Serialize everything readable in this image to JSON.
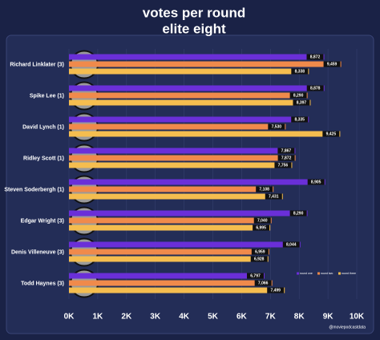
{
  "chart_data": {
    "type": "hbar",
    "title": "votes per round",
    "subtitle": "elite eight",
    "categories": [
      "Richard Linklater (3)",
      "Spike Lee (1)",
      "David Lynch (1)",
      "Ridley Scott (1)",
      "Steven Soderbergh (1)",
      "Edgar Wright (3)",
      "Denis Villeneuve (3)",
      "Todd Haynes (3)"
    ],
    "series": [
      {
        "name": "round one",
        "color": "#6a2fd8",
        "values": [
          8872,
          8878,
          8335,
          7867,
          8905,
          8290,
          8044,
          6797
        ],
        "value_labels": [
          "8,872",
          "8,878",
          "8,335",
          "7,867",
          "8,905",
          "8,290",
          "8,044",
          "6,797"
        ]
      },
      {
        "name": "round two",
        "color": "#f08a4b",
        "values": [
          9459,
          8290,
          7530,
          7872,
          7108,
          7040,
          6959,
          7066
        ],
        "value_labels": [
          "9,459",
          "8,290",
          "7,530",
          "7,872",
          "7,108",
          "7,040",
          "6,959",
          "7,066"
        ]
      },
      {
        "name": "round three",
        "color": "#f5bd4f",
        "values": [
          8338,
          8397,
          9425,
          7756,
          7431,
          6995,
          6928,
          7499
        ],
        "value_labels": [
          "8,338",
          "8,397",
          "9,425",
          "7,756",
          "7,431",
          "6,995",
          "6,928",
          "7,499"
        ]
      }
    ],
    "xlim": [
      0,
      10000
    ],
    "xticks": [
      {
        "value": 0,
        "label": "0K"
      },
      {
        "value": 1000,
        "label": "1K"
      },
      {
        "value": 2000,
        "label": "2K"
      },
      {
        "value": 3000,
        "label": "3K"
      },
      {
        "value": 4000,
        "label": "4K"
      },
      {
        "value": 5000,
        "label": "5K"
      },
      {
        "value": 6000,
        "label": "6K"
      },
      {
        "value": 7000,
        "label": "7K"
      },
      {
        "value": 8000,
        "label": "8K"
      },
      {
        "value": 9000,
        "label": "9K"
      },
      {
        "value": 10000,
        "label": "10K"
      }
    ],
    "grid": true,
    "legend": "lower-right",
    "credit": "@moviepodcastdata"
  }
}
